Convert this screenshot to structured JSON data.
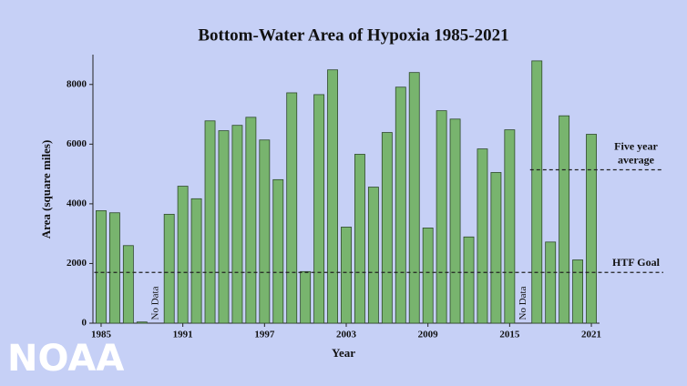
{
  "chart_data": {
    "type": "bar",
    "title": "Bottom-Water Area of Hypoxia 1985-2021",
    "x_label": "Year",
    "y_label": "Area (square miles)",
    "x": [
      1985,
      1986,
      1987,
      1988,
      1989,
      1990,
      1991,
      1992,
      1993,
      1994,
      1995,
      1996,
      1997,
      1998,
      1999,
      2000,
      2001,
      2002,
      2003,
      2004,
      2005,
      2006,
      2007,
      2008,
      2009,
      2010,
      2011,
      2012,
      2013,
      2014,
      2015,
      2016,
      2017,
      2018,
      2019,
      2020,
      2021
    ],
    "values": [
      3770,
      3700,
      2600,
      40,
      null,
      3650,
      4590,
      4170,
      6780,
      6450,
      6630,
      6900,
      6140,
      4810,
      7720,
      1730,
      7660,
      8490,
      3220,
      5660,
      4560,
      6390,
      7910,
      8400,
      3190,
      7120,
      6840,
      2890,
      5840,
      5050,
      6480,
      null,
      8790,
      2720,
      6950,
      2120,
      6330
    ],
    "color": "#78b46e",
    "xlim": [
      1984.4,
      2021.6
    ],
    "xticks": [
      1985,
      1991,
      1997,
      2003,
      2009,
      2015,
      2021
    ],
    "ylim": [
      0,
      9000
    ],
    "yticks": [
      0,
      2000,
      4000,
      6000,
      8000
    ],
    "annotations": [
      {
        "x": 1989,
        "text": "No Data"
      },
      {
        "x": 2016,
        "text": "No Data"
      }
    ],
    "reference_lines": [
      {
        "label_lines": [
          "HTF Goal"
        ],
        "value": 1700,
        "from": 1985
      },
      {
        "label_lines": [
          "Five year",
          "average"
        ],
        "value": 5140,
        "from": 2017
      }
    ]
  },
  "watermark": "NOAA"
}
